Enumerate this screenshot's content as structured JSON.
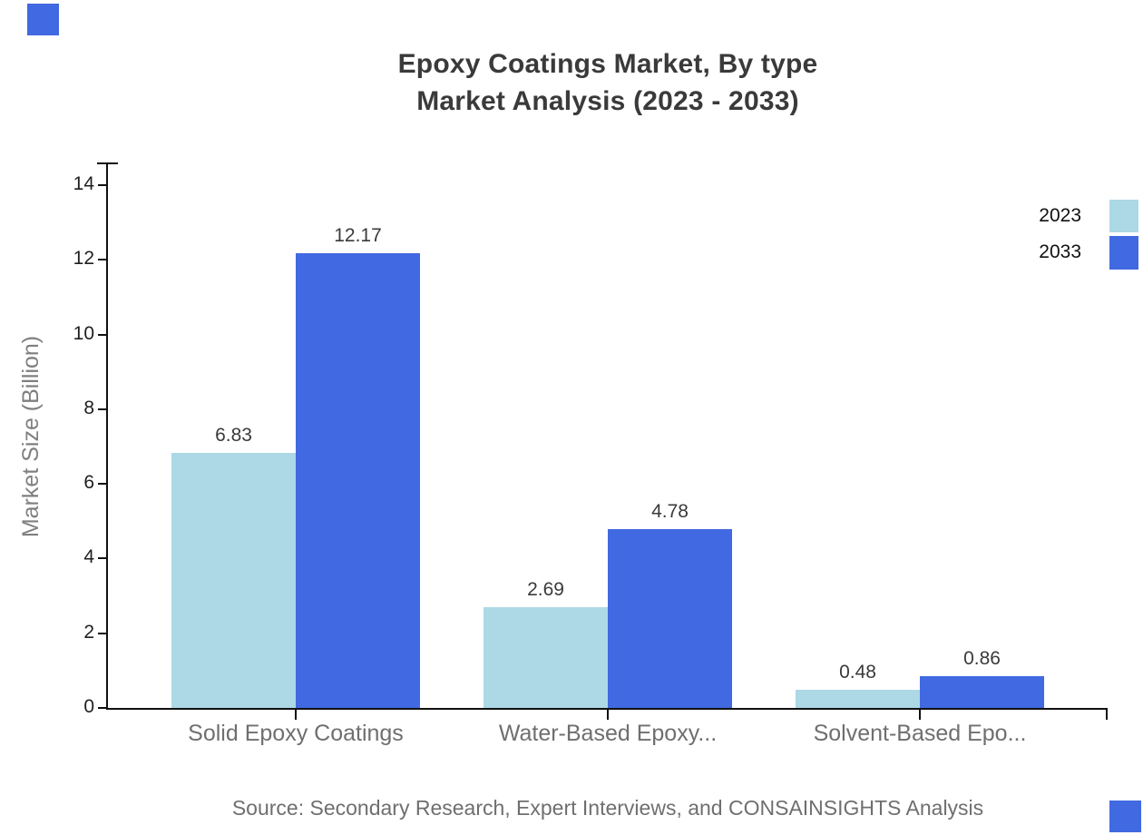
{
  "title": {
    "line1": "Epoxy Coatings Market, By type",
    "line2": "Market Analysis (2023 - 2033)"
  },
  "source": "Source: Secondary Research, Expert Interviews, and CONSAINSIGHTS Analysis",
  "colors": {
    "series_2023": "#ADD8E6",
    "series_2033": "#4169E1",
    "brand_accent": "#4169E1",
    "axis": "#111111",
    "title_text": "#3a3a3a",
    "muted_text": "#6f6f6f"
  },
  "legend": {
    "items": [
      {
        "label": "2023",
        "color": "#ADD8E6"
      },
      {
        "label": "2033",
        "color": "#4169E1"
      }
    ]
  },
  "chart_data": {
    "type": "bar",
    "title": "Epoxy Coatings Market, By type — Market Analysis (2023 - 2033)",
    "categories": [
      "Solid Epoxy Coatings",
      "Water-Based Epoxy...",
      "Solvent-Based Epo..."
    ],
    "series": [
      {
        "name": "2023",
        "color": "#ADD8E6",
        "values": [
          6.83,
          2.69,
          0.48
        ]
      },
      {
        "name": "2033",
        "color": "#4169E1",
        "values": [
          12.17,
          4.78,
          0.86
        ]
      }
    ],
    "value_labels": [
      "6.83",
      "12.17",
      "2.69",
      "4.78",
      "0.48",
      "0.86"
    ],
    "xlabel": "",
    "ylabel": "Market Size (Billion)",
    "ylim": [
      0,
      14
    ],
    "yticks": [
      0,
      2,
      4,
      6,
      8,
      10,
      12,
      14
    ],
    "grid": false,
    "legend_position": "top-right",
    "bar_value_labels_shown": true
  }
}
